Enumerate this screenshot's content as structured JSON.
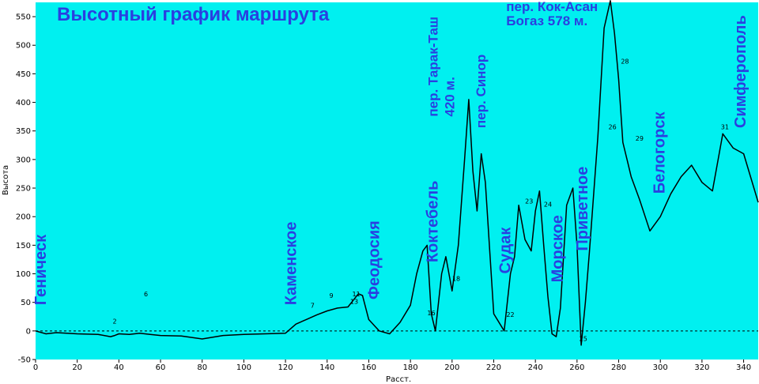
{
  "chart_data": {
    "type": "line",
    "title": "Высотный график маршрута",
    "xlabel": "Расст.",
    "ylabel": "Высота",
    "xlim": [
      0,
      347
    ],
    "ylim": [
      -50,
      575
    ],
    "x_ticks": [
      "0",
      "20",
      "40",
      "60",
      "80",
      "100",
      "120",
      "140",
      "160",
      "180",
      "200",
      "220",
      "240",
      "260",
      "280",
      "300",
      "320",
      "340"
    ],
    "y_ticks": [
      "-50",
      "0",
      "50",
      "100",
      "150",
      "200",
      "250",
      "300",
      "350",
      "400",
      "450",
      "500",
      "550"
    ],
    "grid": false,
    "zero_line": "dashed",
    "background": "#00f0f0",
    "series": [
      {
        "color": "#000000",
        "x": [
          0,
          5,
          10,
          20,
          30,
          36,
          38,
          40,
          45,
          50,
          55,
          60,
          70,
          80,
          90,
          100,
          110,
          120,
          125,
          130,
          135,
          140,
          145,
          150,
          155,
          157,
          160,
          165,
          170,
          175,
          180,
          183,
          186,
          188,
          190,
          192,
          195,
          197,
          200,
          203,
          206,
          208,
          210,
          212,
          214,
          216,
          220,
          225,
          228,
          230,
          232,
          235,
          238,
          240,
          242,
          244,
          246,
          248,
          250,
          252,
          255,
          258,
          260,
          262,
          264,
          266,
          270,
          273,
          276,
          278,
          280,
          282,
          284,
          286,
          290,
          295,
          300,
          305,
          310,
          315,
          320,
          325,
          330,
          335,
          340,
          347
        ],
        "y": [
          0,
          -5,
          -3,
          -5,
          -6,
          -10,
          -8,
          -5,
          -6,
          -4,
          -6,
          -8,
          -9,
          -14,
          -8,
          -6,
          -5,
          -4,
          12,
          20,
          28,
          35,
          40,
          42,
          65,
          62,
          20,
          0,
          -5,
          15,
          45,
          100,
          140,
          150,
          30,
          0,
          100,
          130,
          70,
          150,
          300,
          405,
          280,
          210,
          310,
          260,
          30,
          0,
          100,
          130,
          220,
          160,
          140,
          210,
          245,
          150,
          60,
          -5,
          -10,
          40,
          220,
          250,
          150,
          -25,
          50,
          140,
          340,
          530,
          578,
          520,
          440,
          330,
          300,
          270,
          230,
          175,
          200,
          240,
          270,
          290,
          260,
          245,
          345,
          320,
          310,
          225
        ]
      }
    ],
    "annotations": [
      {
        "text": "Геническ",
        "x": 5,
        "y": 45,
        "rotation": -90
      },
      {
        "text": "Каменское",
        "x": 125,
        "y": 45,
        "rotation": -90
      },
      {
        "text": "Феодосия",
        "x": 165,
        "y": 55,
        "rotation": -90
      },
      {
        "text": "Коктебель",
        "x": 193,
        "y": 120,
        "rotation": -90
      },
      {
        "text": "пер. Тарак-Таш",
        "x": 193,
        "y": 375,
        "rotation": -90
      },
      {
        "text": "420 м.",
        "x": 201,
        "y": 375,
        "rotation": -90
      },
      {
        "text": "пер. Синор",
        "x": 216,
        "y": 355,
        "rotation": -90
      },
      {
        "text": "Судак",
        "x": 228,
        "y": 100,
        "rotation": -90
      },
      {
        "text": "пер. Кок-Асан",
        "x": 226,
        "y": 560
      },
      {
        "text": "Богаз 578 м.",
        "x": 226,
        "y": 535
      },
      {
        "text": "Морское",
        "x": 253,
        "y": 85,
        "rotation": -90
      },
      {
        "text": "Приветное",
        "x": 265,
        "y": 140,
        "rotation": -90
      },
      {
        "text": "Белогорск",
        "x": 302,
        "y": 240,
        "rotation": -90
      },
      {
        "text": "Симферополь",
        "x": 341,
        "y": 355,
        "rotation": -90
      }
    ],
    "waypoints": [
      {
        "label": "2",
        "x": 38,
        "y": 10
      },
      {
        "label": "6",
        "x": 53,
        "y": 58
      },
      {
        "label": "7",
        "x": 133,
        "y": 38
      },
      {
        "label": "9",
        "x": 142,
        "y": 55
      },
      {
        "label": "11",
        "x": 154,
        "y": 58
      },
      {
        "label": "13",
        "x": 153,
        "y": 45
      },
      {
        "label": "16",
        "x": 190,
        "y": 25
      },
      {
        "label": "18",
        "x": 202,
        "y": 85
      },
      {
        "label": "22",
        "x": 228,
        "y": 22
      },
      {
        "label": "23",
        "x": 237,
        "y": 220
      },
      {
        "label": "24",
        "x": 246,
        "y": 215
      },
      {
        "label": "25",
        "x": 263,
        "y": -20
      },
      {
        "label": "26",
        "x": 277,
        "y": 350
      },
      {
        "label": "28",
        "x": 283,
        "y": 465
      },
      {
        "label": "29",
        "x": 290,
        "y": 330
      },
      {
        "label": "31",
        "x": 331,
        "y": 350
      }
    ]
  }
}
